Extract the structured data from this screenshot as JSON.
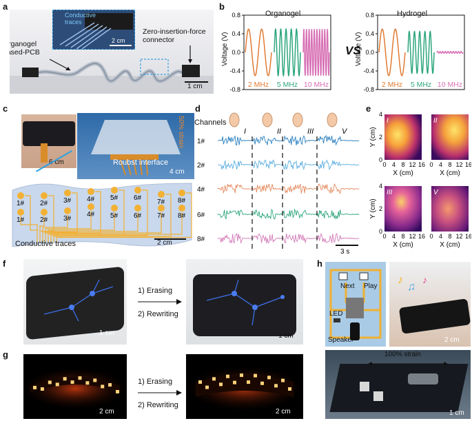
{
  "panels": {
    "a": "a",
    "b": "b",
    "c": "c",
    "d": "d",
    "e": "e",
    "f": "f",
    "g": "g",
    "h": "h"
  },
  "a": {
    "inset_label": "Conductive\ntraces",
    "inset_scale": "2 cm",
    "organogel_label": "Organogel\nbased-PCB",
    "zif_label": "Zero-insertion-force\nconnector",
    "scale": "1 cm"
  },
  "b": {
    "title_left": "Organogel",
    "title_right": "Hydrogel",
    "vs": "VS",
    "ylabel": "Voltage (V)",
    "yticks": [
      "0.8",
      "0.4",
      "0.0",
      "-0.4",
      "-0.8"
    ],
    "freq_labels": [
      "2 MHz",
      "5 MHz",
      "10 MHz"
    ],
    "colors": {
      "f2": "#e07a32",
      "f5": "#2ca57d",
      "f10": "#d76fb4"
    }
  },
  "chart_data": [
    {
      "type": "line",
      "title": "Organogel",
      "ylabel": "Voltage (V)",
      "ylim": [
        -0.8,
        0.8
      ],
      "series": [
        {
          "name": "2 MHz",
          "amplitude": 0.5,
          "cycles": 2
        },
        {
          "name": "5 MHz",
          "amplitude": 0.5,
          "cycles": 5
        },
        {
          "name": "10 MHz",
          "amplitude": 0.5,
          "cycles": 10
        }
      ]
    },
    {
      "type": "line",
      "title": "Hydrogel",
      "ylabel": "Voltage (V)",
      "ylim": [
        -0.8,
        0.8
      ],
      "series": [
        {
          "name": "2 MHz",
          "amplitude": 0.5,
          "cycles": 2
        },
        {
          "name": "5 MHz",
          "amplitude": 0.45,
          "cycles": 5
        },
        {
          "name": "10 MHz",
          "amplitude": 0.02,
          "cycles": 10
        }
      ]
    },
    {
      "type": "heatmap",
      "panels": [
        "I",
        "II",
        "III",
        "V"
      ],
      "xlabel": "X (cm)",
      "ylabel": "Y (cm)",
      "xticks": [
        "0",
        "4",
        "8",
        "12",
        "16"
      ],
      "yticks": [
        "0",
        "2",
        "4"
      ]
    }
  ],
  "c": {
    "scale_left": "6 cm",
    "scale_photo": "4 cm",
    "strain": "50% strain",
    "interface": "Roubst interface",
    "conductive": "Conductive traces",
    "scale_bottom": "2 cm",
    "pads_top": [
      "1#",
      "2#",
      "3#",
      "4#",
      "5#",
      "6#",
      "7#",
      "8#"
    ],
    "pads_bottom": [
      "1#",
      "2#",
      "3#",
      "4#",
      "5#",
      "6#",
      "7#",
      "8#"
    ]
  },
  "d": {
    "channels_label": "Channels",
    "gestures": [
      "I",
      "II",
      "III",
      "V"
    ],
    "channels": [
      "1#",
      "2#",
      "4#",
      "6#",
      "8#"
    ],
    "channel_colors": [
      "#2a7fbf",
      "#5aaee0",
      "#e4875a",
      "#2ca57d",
      "#d37ab8"
    ],
    "scale": "3 s"
  },
  "e": {
    "panel_labels": [
      "I",
      "II",
      "III",
      "V"
    ],
    "xlabel": "X (cm)",
    "ylabel": "Y (cm)",
    "xticks": [
      "0",
      "4",
      "8",
      "12",
      "16"
    ],
    "yticks": [
      "0",
      "2",
      "4"
    ]
  },
  "f": {
    "step1": "1) Erasing",
    "step2": "2) Rewriting",
    "scale_left": "1 cm",
    "scale_right": "1 cm"
  },
  "g": {
    "step1": "1) Erasing",
    "step2": "2) Rewriting",
    "scale_left": "2 cm",
    "scale_right": "2 cm"
  },
  "h": {
    "next": "Next",
    "play": "Play",
    "led": "LED",
    "speaker": "Speaker",
    "scale_wrist": "2 cm",
    "strain": "100% strain",
    "scale_bottom": "1 cm"
  }
}
